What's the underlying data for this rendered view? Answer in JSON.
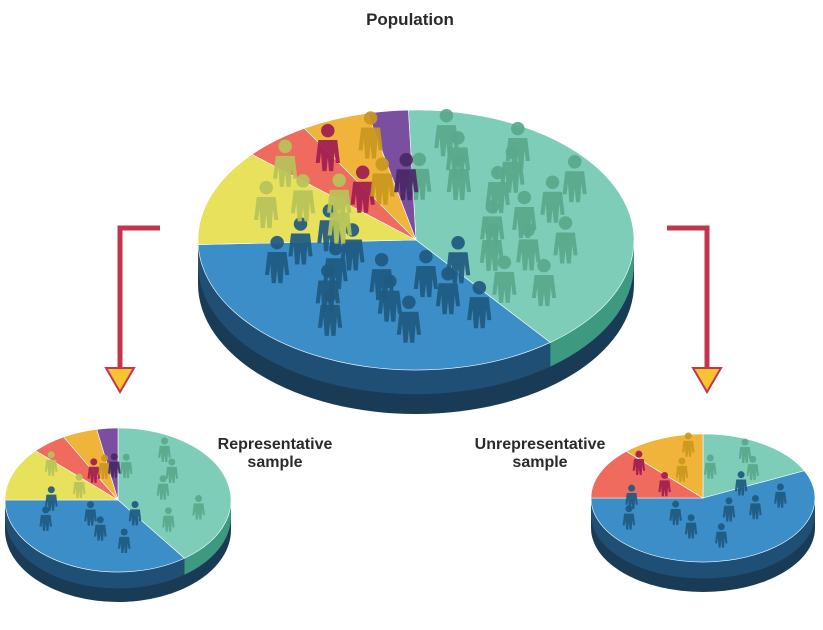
{
  "labels": {
    "population": "Population",
    "representative": "Representative\nsample",
    "unrepresentative": "Unrepresentative\nsample"
  },
  "colors": {
    "teal": "#7ecdb8",
    "teal_figure": "#5aa98c",
    "blue": "#3c8ec8",
    "blue_figure": "#1f5a80",
    "yellow": "#e7e15c",
    "yellow_figure": "#b8c45a",
    "salmon": "#ef6b5d",
    "gold": "#f0b43a",
    "purple": "#7b4fa0",
    "magenta": "#a01d52",
    "arrow": "#c4344f",
    "arrow_tip": "#f6c431",
    "pie_side": "#1a3b55"
  },
  "pies": [
    {
      "id": "population",
      "segments": [
        {
          "group": "teal",
          "share": 0.4
        },
        {
          "group": "blue",
          "share": 0.35
        },
        {
          "group": "yellow",
          "share": 0.12
        },
        {
          "group": "salmon",
          "share": 0.05
        },
        {
          "group": "gold",
          "share": 0.05
        },
        {
          "group": "purple",
          "share": 0.03
        }
      ]
    },
    {
      "id": "representative",
      "segments": [
        {
          "group": "teal",
          "share": 0.4
        },
        {
          "group": "blue",
          "share": 0.35
        },
        {
          "group": "yellow",
          "share": 0.12
        },
        {
          "group": "salmon",
          "share": 0.05
        },
        {
          "group": "gold",
          "share": 0.05
        },
        {
          "group": "purple",
          "share": 0.03
        }
      ]
    },
    {
      "id": "unrepresentative",
      "segments": [
        {
          "group": "teal",
          "share": 0.18
        },
        {
          "group": "blue",
          "share": 0.57
        },
        {
          "group": "salmon",
          "share": 0.13
        },
        {
          "group": "gold",
          "share": 0.12
        }
      ]
    }
  ]
}
